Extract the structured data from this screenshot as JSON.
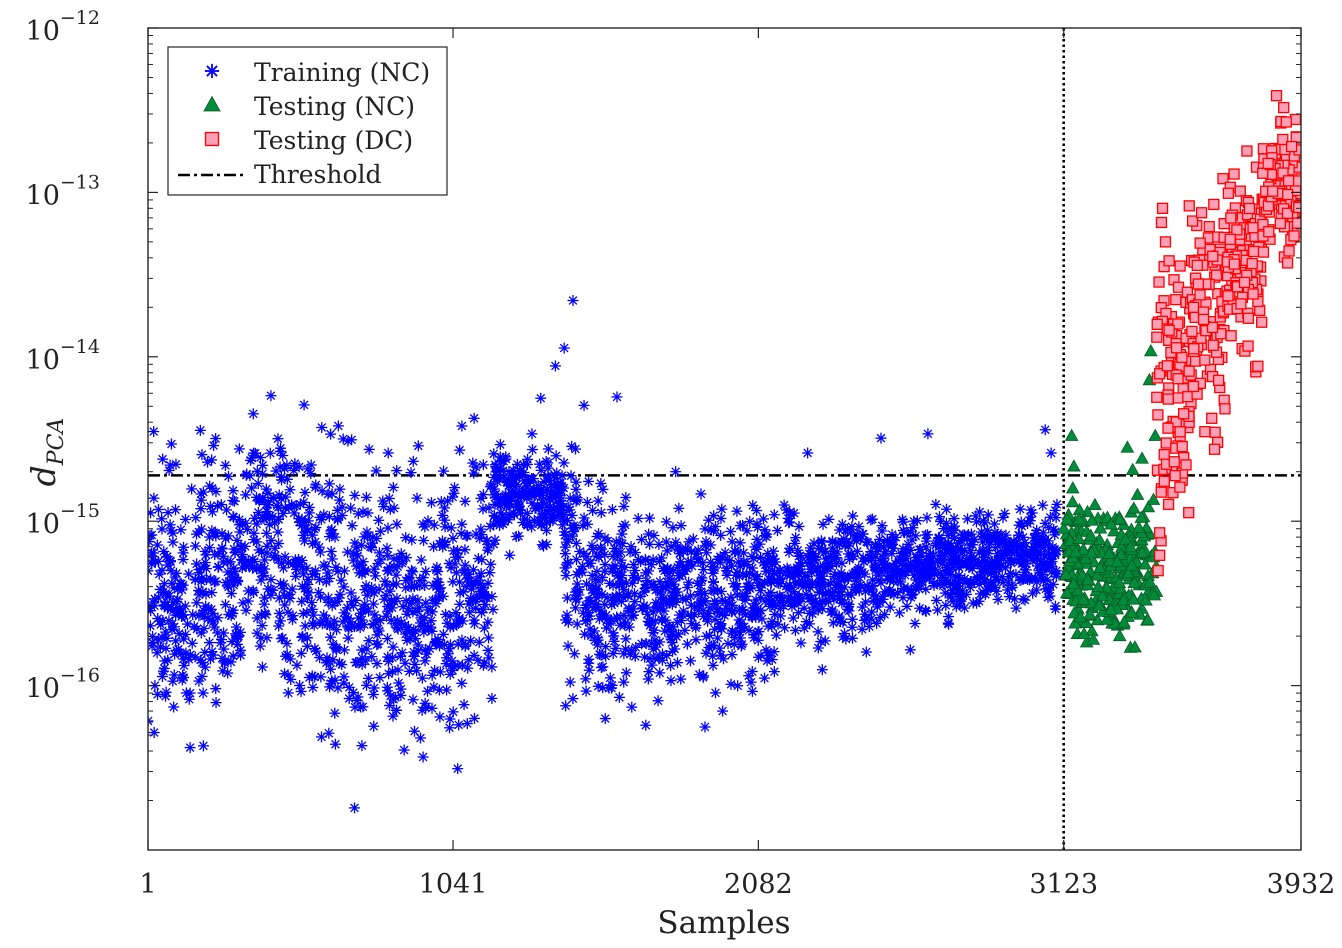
{
  "chart_data": {
    "type": "scatter",
    "title": "",
    "xlabel": "Samples",
    "ylabel": {
      "base": "d",
      "subscript": "PCA"
    },
    "xlim": [
      1,
      3932
    ],
    "x_ticks": [
      {
        "value": 1,
        "label": "1"
      },
      {
        "value": 1041,
        "label": "1041"
      },
      {
        "value": 2082,
        "label": "2082"
      },
      {
        "value": 3123,
        "label": "3123"
      },
      {
        "value": 3932,
        "label": "3932"
      }
    ],
    "y_scale": "log",
    "ylim": [
      1e-17,
      1e-12
    ],
    "y_ticks": [
      {
        "value": 1e-16,
        "base": "10",
        "exp": "−16"
      },
      {
        "value": 1e-15,
        "base": "10",
        "exp": "−15"
      },
      {
        "value": 1e-14,
        "base": "10",
        "exp": "−14"
      },
      {
        "value": 1e-13,
        "base": "10",
        "exp": "−13"
      },
      {
        "value": 1e-12,
        "base": "10",
        "exp": "−12"
      }
    ],
    "threshold": {
      "name": "Threshold",
      "value": 1.9e-15,
      "color": "#000000"
    },
    "vertical_line": {
      "x": 3123,
      "color": "#000000"
    },
    "legend": {
      "position": "top-left"
    },
    "series": [
      {
        "name": "Training (NC)",
        "marker": "asterisk",
        "color": "#0000ff",
        "segments": [
          {
            "x_start": 1,
            "x_end": 160,
            "center": 3.2e-16,
            "spread_dec": 0.35
          },
          {
            "x_start": 160,
            "x_end": 360,
            "center": 4.5e-16,
            "spread_dec": 0.38
          },
          {
            "x_start": 360,
            "x_end": 520,
            "center": 6.5e-16,
            "spread_dec": 0.38
          },
          {
            "x_start": 520,
            "x_end": 700,
            "center": 4.5e-16,
            "spread_dec": 0.42
          },
          {
            "x_start": 700,
            "x_end": 1100,
            "center": 3e-16,
            "spread_dec": 0.4
          },
          {
            "x_start": 1100,
            "x_end": 1180,
            "center": 4.5e-16,
            "spread_dec": 0.4
          },
          {
            "x_start": 1180,
            "x_end": 1420,
            "center": 1.4e-15,
            "spread_dec": 0.12
          },
          {
            "x_start": 1420,
            "x_end": 1520,
            "center": 5e-16,
            "spread_dec": 0.35
          },
          {
            "x_start": 1520,
            "x_end": 1760,
            "center": 3e-16,
            "spread_dec": 0.28
          },
          {
            "x_start": 1760,
            "x_end": 2150,
            "center": 3.6e-16,
            "spread_dec": 0.25
          },
          {
            "x_start": 2150,
            "x_end": 2500,
            "center": 4.6e-16,
            "spread_dec": 0.18
          },
          {
            "x_start": 2500,
            "x_end": 2800,
            "center": 5.4e-16,
            "spread_dec": 0.14
          },
          {
            "x_start": 2800,
            "x_end": 3100,
            "center": 6.2e-16,
            "spread_dec": 0.13
          }
        ],
        "points": [
          [
            360,
            4.5e-15
          ],
          [
            420,
            5.8e-15
          ],
          [
            650,
            3.8e-15
          ],
          [
            820,
            2.6e-15
          ],
          [
            1310,
            3.4e-15
          ],
          [
            1340,
            5.6e-15
          ],
          [
            1390,
            8.8e-15
          ],
          [
            1420,
            1.13e-14
          ],
          [
            1450,
            2.2e-14
          ],
          [
            1600,
            5.7e-15
          ],
          [
            1800,
            2e-15
          ],
          [
            2250,
            2.6e-15
          ],
          [
            2500,
            3.2e-15
          ],
          [
            2660,
            3.4e-15
          ],
          [
            3060,
            3.6e-15
          ],
          [
            3080,
            2.6e-15
          ],
          [
            190,
            4.3e-17
          ],
          [
            640,
            4.4e-17
          ],
          [
            930,
            4.8e-17
          ],
          [
            1560,
            6.3e-17
          ],
          [
            1900,
            5.6e-17
          ],
          [
            1960,
            7e-17
          ],
          [
            2300,
            1.25e-16
          ],
          [
            2450,
            1.6e-16
          ],
          [
            2600,
            1.65e-16
          ]
        ]
      },
      {
        "name": "Testing (NC)",
        "marker": "triangle",
        "color": "#008c3a",
        "segments": [
          {
            "x_start": 3123,
            "x_end": 3440,
            "center": 5.5e-16,
            "spread_dec": 0.22
          }
        ],
        "points": [
          [
            3150,
            3.3e-15
          ],
          [
            3340,
            2.8e-15
          ],
          [
            3390,
            2.4e-15
          ],
          [
            3420,
            1.08e-14
          ],
          [
            3415,
            7.2e-15
          ],
          [
            3435,
            3.3e-15
          ],
          [
            3180,
            2.6e-16
          ],
          [
            3410,
            2.5e-16
          ]
        ]
      },
      {
        "name": "Testing (DC)",
        "marker": "square",
        "color": "#ff0000",
        "fill": "#ff9fb6",
        "segments": [
          {
            "x_start": 3440,
            "x_end": 3560,
            "center": 8e-15,
            "spread_dec": 0.4
          },
          {
            "x_start": 3560,
            "x_end": 3680,
            "center": 1.8e-14,
            "spread_dec": 0.35
          },
          {
            "x_start": 3680,
            "x_end": 3800,
            "center": 3.8e-14,
            "spread_dec": 0.28
          },
          {
            "x_start": 3800,
            "x_end": 3932,
            "center": 1.1e-13,
            "spread_dec": 0.2
          }
        ],
        "points": [
          [
            3445,
            5e-16
          ],
          [
            3450,
            6.2e-16
          ],
          [
            3455,
            7.6e-16
          ],
          [
            3450,
            8.5e-16
          ],
          [
            3460,
            8e-14
          ],
          [
            3470,
            5e-14
          ],
          [
            3500,
            2.3e-15
          ],
          [
            3520,
            3.5e-15
          ],
          [
            3540,
            2.2e-15
          ],
          [
            3820,
            1.5e-13
          ],
          [
            3870,
            2.1e-13
          ],
          [
            3900,
            1.9e-13
          ],
          [
            3920,
            6.5e-14
          ]
        ]
      }
    ]
  }
}
